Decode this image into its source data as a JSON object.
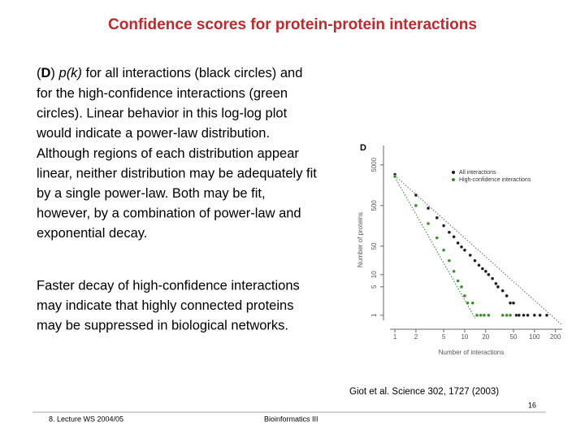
{
  "header": {
    "title": "Confidence scores for protein-protein interactions"
  },
  "paragraphs": [
    {
      "lines": [
        {
          "segments": [
            {
              "text": "("
            },
            {
              "text": "D",
              "bold": true
            },
            {
              "text": ") "
            },
            {
              "text": "p(k)",
              "italic": true
            },
            {
              "text": " for all interactions (black circles) and"
            }
          ]
        },
        "for the high-confidence interactions (green",
        "circles). Linear behavior in this log-log plot",
        "would indicate a power-law distribution.",
        "Although regions of each distribution appear",
        "linear, neither distribution may be adequately fit",
        "by a single power-law. Both may be fit,",
        "however, by a combination of power-law and",
        "exponential decay."
      ]
    },
    {
      "lines": [
        "Faster decay of high-confidence interactions",
        "may indicate that highly connected proteins",
        "may be suppressed in biological networks."
      ]
    }
  ],
  "figure": {
    "type": "scatter",
    "panel_label": "D",
    "x_label": "Number of interactions",
    "y_label": "Number of proteins",
    "log_x": true,
    "log_y": true,
    "xlim": [
      0.85,
      250
    ],
    "ylim": [
      0.75,
      15000
    ],
    "xticks": [
      1,
      2,
      5,
      10,
      20,
      50,
      100,
      200
    ],
    "yticks": [
      1,
      5,
      10,
      50,
      500,
      5000
    ],
    "series": [
      {
        "name": "All interactions",
        "color": "#1a1a1a",
        "x": [
          1,
          2,
          3,
          4,
          5,
          6,
          7,
          8,
          9,
          10,
          12,
          14,
          16,
          18,
          20,
          22,
          25,
          28,
          30,
          35,
          40,
          45,
          50,
          55,
          60,
          70,
          80,
          100,
          120,
          150
        ],
        "values": [
          2900,
          900,
          430,
          250,
          160,
          110,
          85,
          60,
          48,
          40,
          30,
          22,
          17,
          14,
          12,
          10,
          8,
          6,
          5,
          4,
          3,
          2,
          2,
          1,
          1,
          1,
          1,
          1,
          1,
          1
        ]
      },
      {
        "name": "High-confidence interactions",
        "color": "#3a8a2a",
        "x": [
          1,
          2,
          3,
          4,
          5,
          6,
          7,
          8,
          9,
          10,
          11,
          13,
          15,
          17,
          19,
          22,
          35,
          40,
          45
        ],
        "values": [
          2600,
          500,
          180,
          80,
          40,
          22,
          12,
          7,
          5,
          3,
          2,
          2,
          1,
          1,
          1,
          1,
          1,
          1,
          1
        ]
      }
    ]
  },
  "citation": "Giot et al. Science 302, 1727 (2003)",
  "footer": {
    "left": "8. Lecture WS 2004/05",
    "center": "Bioinformatics III",
    "page": "16"
  }
}
